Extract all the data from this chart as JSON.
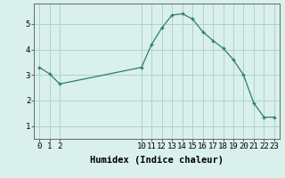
{
  "x": [
    0,
    1,
    2,
    10,
    11,
    12,
    13,
    14,
    15,
    16,
    17,
    18,
    19,
    20,
    21,
    22,
    23
  ],
  "y": [
    3.3,
    3.05,
    2.65,
    3.3,
    4.2,
    4.85,
    5.35,
    5.4,
    5.2,
    4.7,
    4.35,
    4.05,
    3.6,
    3.0,
    1.9,
    1.35,
    1.35
  ],
  "line_color": "#2e7d6e",
  "marker": "+",
  "bg_color": "#d9f0ec",
  "grid_color": "#aed4cc",
  "xlabel": "Humidex (Indice chaleur)",
  "xlim": [
    -0.5,
    23.5
  ],
  "ylim": [
    0.5,
    5.8
  ],
  "yticks": [
    1,
    2,
    3,
    4,
    5
  ],
  "xticks": [
    0,
    1,
    2,
    10,
    11,
    12,
    13,
    14,
    15,
    16,
    17,
    18,
    19,
    20,
    21,
    22,
    23
  ],
  "xlabel_fontsize": 7.5,
  "tick_fontsize": 6.5
}
